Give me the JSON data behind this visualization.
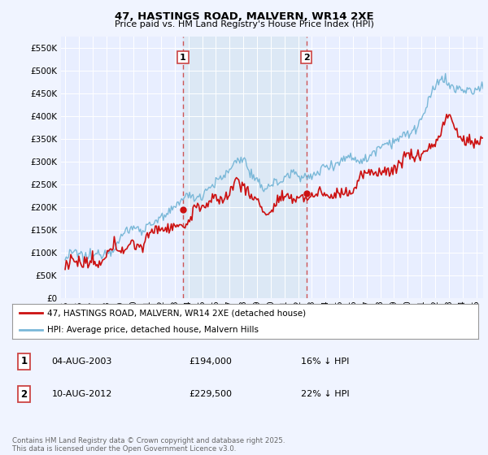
{
  "title1": "47, HASTINGS ROAD, MALVERN, WR14 2XE",
  "title2": "Price paid vs. HM Land Registry's House Price Index (HPI)",
  "background_color": "#f0f4ff",
  "plot_bg_color": "#e8eeff",
  "shade_color": "#dce8f5",
  "grid_color": "#ccccdd",
  "hpi_color": "#7ab8d8",
  "price_color": "#cc1111",
  "vline_color": "#cc4444",
  "legend_entries": [
    "47, HASTINGS ROAD, MALVERN, WR14 2XE (detached house)",
    "HPI: Average price, detached house, Malvern Hills"
  ],
  "table_rows": [
    {
      "num": "1",
      "date": "04-AUG-2003",
      "price": "£194,000",
      "change": "16% ↓ HPI"
    },
    {
      "num": "2",
      "date": "10-AUG-2012",
      "price": "£229,500",
      "change": "22% ↓ HPI"
    }
  ],
  "footer": "Contains HM Land Registry data © Crown copyright and database right 2025.\nThis data is licensed under the Open Government Licence v3.0.",
  "ylim": [
    0,
    575000
  ],
  "xlim_start": 1994.7,
  "xlim_end": 2025.5,
  "marker1_year": 2003.6,
  "marker2_year": 2012.6,
  "purchase1_price": 194000,
  "purchase2_price": 229500
}
